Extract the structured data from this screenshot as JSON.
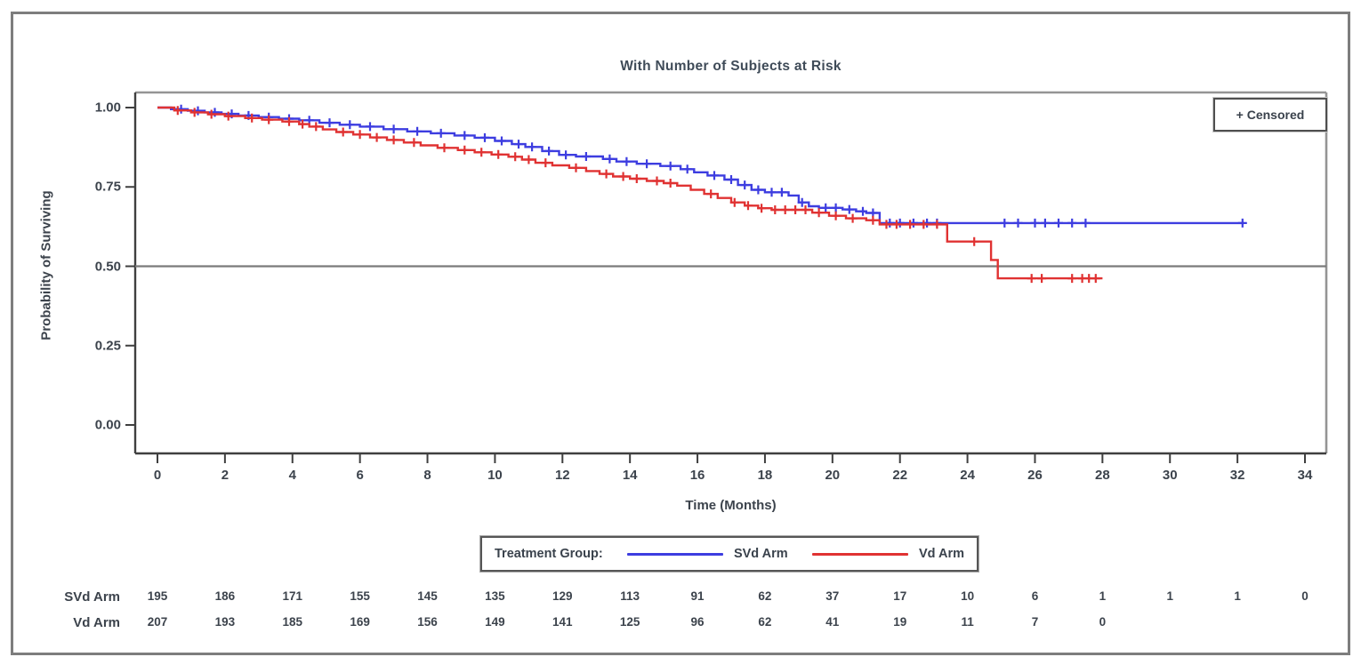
{
  "figure": {
    "title": "With Number of Subjects at Risk"
  },
  "plot": {
    "censored_label": "+ Censored",
    "y_axis": {
      "label": "Probability of Surviving",
      "tick_labels": [
        "1.00",
        "0.75",
        "0.50",
        "0.25",
        "0.00"
      ],
      "tick_values": [
        1.0,
        0.75,
        0.5,
        0.25,
        0.0
      ]
    },
    "x_axis": {
      "label": "Time (Months)",
      "tick_values": [
        0,
        2,
        4,
        6,
        8,
        10,
        12,
        14,
        16,
        18,
        20,
        22,
        24,
        26,
        28,
        30,
        32,
        34
      ]
    },
    "colors": {
      "svd_arm": "#3d3de0",
      "vd_arm": "#e03232",
      "reference_line": "#7a7a7a",
      "axis": "#3f3f3f",
      "frame": "#949494"
    }
  },
  "legend": {
    "label": "Treatment Group:",
    "series": [
      {
        "name": "SVd Arm",
        "color": "#3d3de0"
      },
      {
        "name": "Vd Arm",
        "color": "#e03232"
      }
    ]
  },
  "at_risk": {
    "months": [
      0,
      2,
      4,
      6,
      8,
      10,
      12,
      14,
      16,
      18,
      20,
      22,
      24,
      26,
      28,
      30,
      32,
      34
    ],
    "rows": [
      {
        "label": "SVd Arm",
        "counts": [
          195,
          186,
          171,
          155,
          145,
          135,
          129,
          113,
          91,
          62,
          37,
          17,
          10,
          6,
          1,
          1,
          1,
          0
        ]
      },
      {
        "label": "Vd Arm",
        "counts": [
          207,
          193,
          185,
          169,
          156,
          149,
          141,
          125,
          96,
          62,
          41,
          19,
          11,
          7,
          0
        ]
      }
    ]
  },
  "chart_data": {
    "type": "line",
    "subtype": "kaplan-meier-step",
    "title": "With Number of Subjects at Risk",
    "xlabel": "Time (Months)",
    "ylabel": "Probability of Surviving",
    "xlim": [
      0,
      34
    ],
    "ylim": [
      0.0,
      1.0
    ],
    "x_ticks": [
      0,
      2,
      4,
      6,
      8,
      10,
      12,
      14,
      16,
      18,
      20,
      22,
      24,
      26,
      28,
      30,
      32,
      34
    ],
    "y_ticks": [
      0.0,
      0.25,
      0.5,
      0.75,
      1.0
    ],
    "reference_line_y": 0.5,
    "grid": false,
    "legend_position": "bottom",
    "series": [
      {
        "name": "SVd Arm",
        "color": "#3d3de0",
        "steps": [
          [
            0,
            1.0
          ],
          [
            0.4,
            0.995
          ],
          [
            0.9,
            0.99
          ],
          [
            1.4,
            0.985
          ],
          [
            1.9,
            0.98
          ],
          [
            2.4,
            0.975
          ],
          [
            3.0,
            0.97
          ],
          [
            3.6,
            0.965
          ],
          [
            4.2,
            0.96
          ],
          [
            4.8,
            0.952
          ],
          [
            5.4,
            0.946
          ],
          [
            6.0,
            0.94
          ],
          [
            6.7,
            0.932
          ],
          [
            7.4,
            0.925
          ],
          [
            8.1,
            0.919
          ],
          [
            8.8,
            0.912
          ],
          [
            9.4,
            0.905
          ],
          [
            10.0,
            0.895
          ],
          [
            10.5,
            0.885
          ],
          [
            10.9,
            0.876
          ],
          [
            11.4,
            0.863
          ],
          [
            11.9,
            0.851
          ],
          [
            12.4,
            0.846
          ],
          [
            13.2,
            0.838
          ],
          [
            13.6,
            0.83
          ],
          [
            14.2,
            0.823
          ],
          [
            14.9,
            0.816
          ],
          [
            15.5,
            0.806
          ],
          [
            15.9,
            0.796
          ],
          [
            16.3,
            0.786
          ],
          [
            16.8,
            0.773
          ],
          [
            17.2,
            0.756
          ],
          [
            17.6,
            0.741
          ],
          [
            18.0,
            0.733
          ],
          [
            18.7,
            0.723
          ],
          [
            19.0,
            0.701
          ],
          [
            19.3,
            0.689
          ],
          [
            19.6,
            0.684
          ],
          [
            20.3,
            0.679
          ],
          [
            20.7,
            0.673
          ],
          [
            21.0,
            0.668
          ],
          [
            21.4,
            0.636
          ]
        ],
        "end_x": 32.2,
        "censor_x": [
          0.7,
          1.2,
          1.7,
          2.2,
          2.7,
          3.3,
          3.9,
          4.5,
          5.1,
          5.7,
          6.3,
          7.0,
          7.7,
          8.4,
          9.1,
          9.7,
          10.2,
          10.7,
          11.1,
          11.6,
          12.1,
          12.7,
          13.4,
          13.9,
          14.5,
          15.2,
          15.7,
          16.5,
          17.0,
          17.4,
          17.8,
          18.2,
          18.5,
          19.1,
          19.8,
          20.1,
          20.5,
          20.9,
          21.2,
          21.7,
          22.0,
          22.4,
          22.8,
          23.1,
          25.1,
          25.5,
          26.0,
          26.3,
          26.7,
          27.1,
          27.5,
          32.15
        ]
      },
      {
        "name": "Vd Arm",
        "color": "#e03232",
        "steps": [
          [
            0,
            1.0
          ],
          [
            0.5,
            0.991
          ],
          [
            1.0,
            0.985
          ],
          [
            1.5,
            0.979
          ],
          [
            2.0,
            0.973
          ],
          [
            2.6,
            0.967
          ],
          [
            3.1,
            0.962
          ],
          [
            3.7,
            0.956
          ],
          [
            4.2,
            0.948
          ],
          [
            4.5,
            0.94
          ],
          [
            4.9,
            0.931
          ],
          [
            5.3,
            0.923
          ],
          [
            5.8,
            0.915
          ],
          [
            6.3,
            0.906
          ],
          [
            6.8,
            0.898
          ],
          [
            7.3,
            0.89
          ],
          [
            7.8,
            0.881
          ],
          [
            8.3,
            0.873
          ],
          [
            8.9,
            0.866
          ],
          [
            9.4,
            0.859
          ],
          [
            9.9,
            0.852
          ],
          [
            10.4,
            0.845
          ],
          [
            10.8,
            0.836
          ],
          [
            11.2,
            0.826
          ],
          [
            11.7,
            0.818
          ],
          [
            12.2,
            0.81
          ],
          [
            12.7,
            0.8
          ],
          [
            13.1,
            0.791
          ],
          [
            13.5,
            0.783
          ],
          [
            14.0,
            0.776
          ],
          [
            14.5,
            0.769
          ],
          [
            15.0,
            0.762
          ],
          [
            15.4,
            0.754
          ],
          [
            15.8,
            0.741
          ],
          [
            16.2,
            0.728
          ],
          [
            16.6,
            0.715
          ],
          [
            17.0,
            0.701
          ],
          [
            17.4,
            0.691
          ],
          [
            17.8,
            0.683
          ],
          [
            18.2,
            0.678
          ],
          [
            19.4,
            0.669
          ],
          [
            19.9,
            0.659
          ],
          [
            20.4,
            0.651
          ],
          [
            21.0,
            0.645
          ],
          [
            21.4,
            0.632
          ],
          [
            23.4,
            0.578
          ],
          [
            24.7,
            0.52
          ],
          [
            24.9,
            0.462
          ]
        ],
        "end_x": 28.0,
        "censor_x": [
          0.6,
          1.1,
          1.6,
          2.1,
          2.8,
          3.3,
          3.9,
          4.3,
          4.7,
          5.5,
          6.0,
          6.5,
          7.0,
          7.6,
          8.5,
          9.1,
          9.6,
          10.1,
          10.6,
          11.0,
          11.5,
          12.4,
          13.3,
          13.8,
          14.2,
          14.8,
          15.2,
          16.4,
          17.1,
          17.5,
          17.9,
          18.3,
          18.6,
          18.9,
          19.2,
          19.6,
          20.1,
          20.6,
          21.2,
          21.6,
          21.9,
          22.3,
          22.7,
          23.1,
          24.2,
          25.9,
          26.2,
          27.1,
          27.4,
          27.6,
          27.8
        ]
      }
    ],
    "at_risk_table": {
      "months": [
        0,
        2,
        4,
        6,
        8,
        10,
        12,
        14,
        16,
        18,
        20,
        22,
        24,
        26,
        28,
        30,
        32,
        34
      ],
      "SVd Arm": [
        195,
        186,
        171,
        155,
        145,
        135,
        129,
        113,
        91,
        62,
        37,
        17,
        10,
        6,
        1,
        1,
        1,
        0
      ],
      "Vd Arm": [
        207,
        193,
        185,
        169,
        156,
        149,
        141,
        125,
        96,
        62,
        41,
        19,
        11,
        7,
        0
      ]
    }
  }
}
